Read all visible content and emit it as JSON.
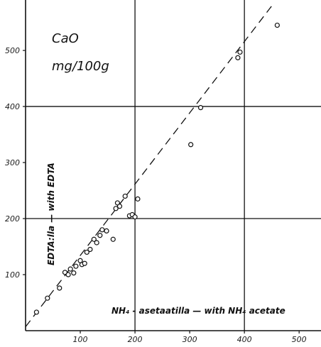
{
  "chart_data": {
    "type": "scatter",
    "title": "",
    "annotation_lines": [
      "CaO",
      "mg/100g"
    ],
    "xlabel": "NH₄ - asetaatilla — with NH₄ acetate",
    "ylabel": "EDTA:lla — with EDTA",
    "xlim": [
      0,
      540
    ],
    "ylim": [
      0,
      590
    ],
    "xticks": [
      100,
      200,
      300,
      400,
      500
    ],
    "yticks": [
      100,
      200,
      300,
      400,
      500
    ],
    "gridlines": {
      "x": [
        200,
        400
      ],
      "y": [
        200,
        400
      ]
    },
    "points": [
      {
        "x": 20,
        "y": 33
      },
      {
        "x": 40,
        "y": 58
      },
      {
        "x": 62,
        "y": 76
      },
      {
        "x": 72,
        "y": 104
      },
      {
        "x": 78,
        "y": 100
      },
      {
        "x": 82,
        "y": 110
      },
      {
        "x": 88,
        "y": 103
      },
      {
        "x": 92,
        "y": 115
      },
      {
        "x": 100,
        "y": 125
      },
      {
        "x": 103,
        "y": 118
      },
      {
        "x": 108,
        "y": 120
      },
      {
        "x": 112,
        "y": 140
      },
      {
        "x": 118,
        "y": 145
      },
      {
        "x": 125,
        "y": 163
      },
      {
        "x": 130,
        "y": 157
      },
      {
        "x": 136,
        "y": 170
      },
      {
        "x": 140,
        "y": 180
      },
      {
        "x": 148,
        "y": 178
      },
      {
        "x": 160,
        "y": 163
      },
      {
        "x": 165,
        "y": 218
      },
      {
        "x": 168,
        "y": 228
      },
      {
        "x": 172,
        "y": 222
      },
      {
        "x": 182,
        "y": 240
      },
      {
        "x": 190,
        "y": 205
      },
      {
        "x": 195,
        "y": 207
      },
      {
        "x": 200,
        "y": 203
      },
      {
        "x": 205,
        "y": 235
      },
      {
        "x": 302,
        "y": 332
      },
      {
        "x": 320,
        "y": 398
      },
      {
        "x": 388,
        "y": 487
      },
      {
        "x": 392,
        "y": 497
      },
      {
        "x": 460,
        "y": 545
      }
    ],
    "trend_line": {
      "style": "dashed",
      "from": {
        "x": 0,
        "y": 7
      },
      "to": {
        "x": 452,
        "y": 582
      }
    },
    "grid": true,
    "legend": "none"
  }
}
